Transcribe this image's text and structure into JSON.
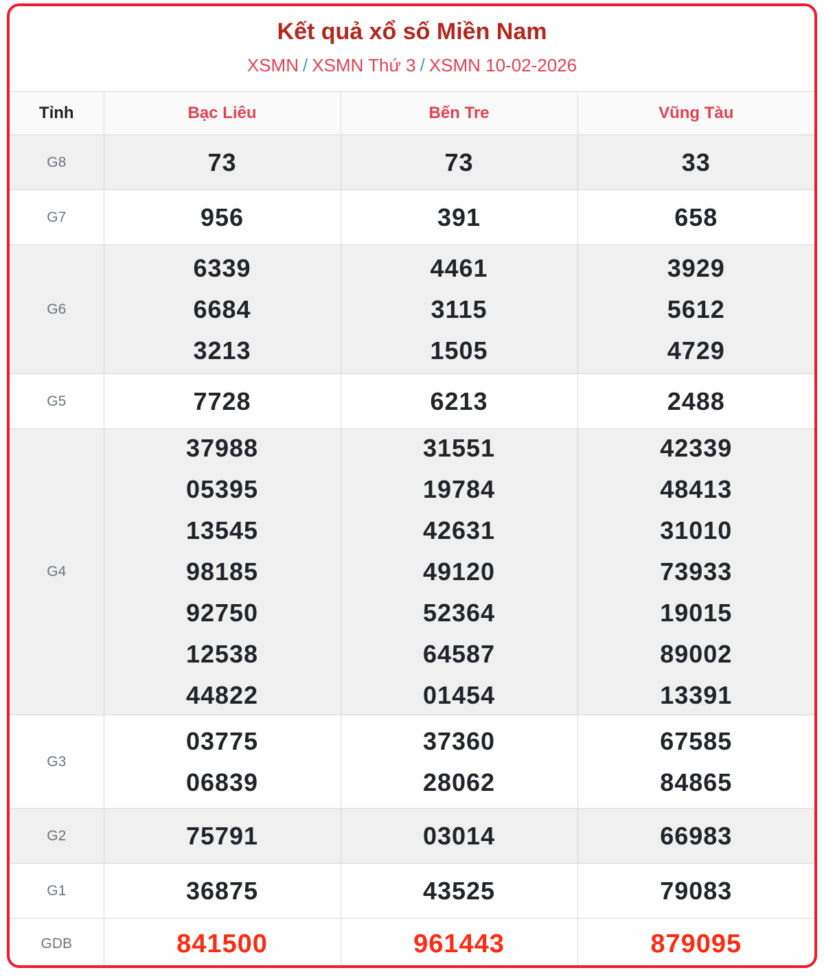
{
  "title": "Kết quả xổ số Miền Nam",
  "breadcrumb": {
    "separator": "/",
    "items": [
      "XSMN",
      "XSMN Thứ 3",
      "XSMN 10-02-2026"
    ]
  },
  "table": {
    "corner_header": "Tỉnh",
    "provinces": [
      "Bạc Liêu",
      "Bến Tre",
      "Vũng Tàu"
    ],
    "rows": [
      {
        "label": "G8",
        "values": [
          [
            "73"
          ],
          [
            "73"
          ],
          [
            "33"
          ]
        ]
      },
      {
        "label": "G7",
        "values": [
          [
            "956"
          ],
          [
            "391"
          ],
          [
            "658"
          ]
        ]
      },
      {
        "label": "G6",
        "values": [
          [
            "6339",
            "6684",
            "3213"
          ],
          [
            "4461",
            "3115",
            "1505"
          ],
          [
            "3929",
            "5612",
            "4729"
          ]
        ]
      },
      {
        "label": "G5",
        "values": [
          [
            "7728"
          ],
          [
            "6213"
          ],
          [
            "2488"
          ]
        ]
      },
      {
        "label": "G4",
        "values": [
          [
            "37988",
            "05395",
            "13545",
            "98185",
            "92750",
            "12538",
            "44822"
          ],
          [
            "31551",
            "19784",
            "42631",
            "49120",
            "52364",
            "64587",
            "01454"
          ],
          [
            "42339",
            "48413",
            "31010",
            "73933",
            "19015",
            "89002",
            "13391"
          ]
        ]
      },
      {
        "label": "G3",
        "values": [
          [
            "03775",
            "06839"
          ],
          [
            "37360",
            "28062"
          ],
          [
            "67585",
            "84865"
          ]
        ]
      },
      {
        "label": "G2",
        "values": [
          [
            "75791"
          ],
          [
            "03014"
          ],
          [
            "66983"
          ]
        ]
      },
      {
        "label": "G1",
        "values": [
          [
            "36875"
          ],
          [
            "43525"
          ],
          [
            "79083"
          ]
        ]
      },
      {
        "label": "GDB",
        "values": [
          [
            "841500"
          ],
          [
            "961443"
          ],
          [
            "879095"
          ]
        ],
        "highlight": true
      }
    ]
  },
  "colors": {
    "border_red": "#ee1c2e",
    "title_red": "#b3271e",
    "link_red": "#df4352",
    "separator_blue": "#4596d3",
    "text_dark": "#212529",
    "label_gray": "#6c757d",
    "stripe_gray": "#f0f0f1",
    "header_row_bg": "#fafafa",
    "cell_border": "#d9d9d9",
    "special_red": "#fb2c14"
  }
}
